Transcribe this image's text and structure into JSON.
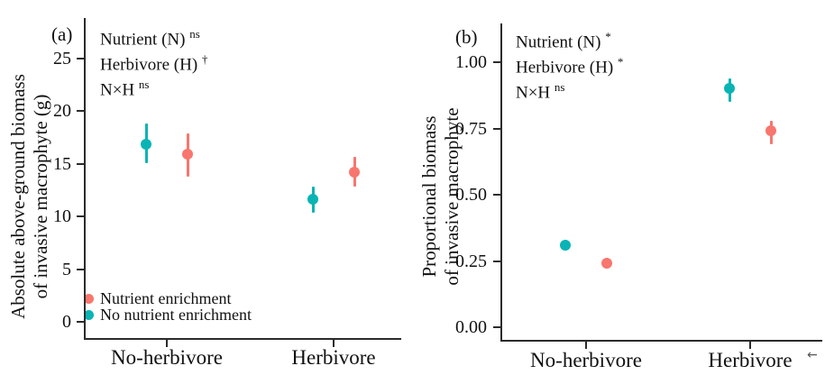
{
  "figure": {
    "legend": {
      "items": [
        {
          "label": "Nutrient enrichment",
          "color": "#f8766d"
        },
        {
          "label": "No nutrient enrichment",
          "color": "#0ab4b4"
        }
      ]
    },
    "colors": {
      "nutrient": "#f8766d",
      "no_nutrient": "#0ab4b4",
      "axis": "#2b2b2b"
    },
    "trailing_mark": "←"
  },
  "chart_data": [
    {
      "type": "scatter",
      "panel_label": "(a)",
      "ylabel_line1": "Absolute above-ground biomass",
      "ylabel_line2": "of invasive macrophyte (g)",
      "ylim": [
        0,
        27
      ],
      "grid": false,
      "legend_position": "bottom-left-inside",
      "yticks": [
        "0",
        "5",
        "10",
        "15",
        "20",
        "25"
      ],
      "ytick_values": [
        0,
        5,
        10,
        15,
        20,
        25
      ],
      "categories": [
        "No-herbivore",
        "Herbivore"
      ],
      "annotations": [
        {
          "text": "Nutrient (N)",
          "sup": "ns"
        },
        {
          "text": "Herbivore (H)",
          "sup": "†"
        },
        {
          "text": "N×H",
          "sup": "ns"
        }
      ],
      "series": [
        {
          "name": "Nutrient enrichment",
          "color": "#f8766d",
          "points": [
            {
              "category": "No-herbivore",
              "mean": 15.9,
              "ci_low": 13.8,
              "ci_high": 17.9
            },
            {
              "category": "Herbivore",
              "mean": 14.2,
              "ci_low": 12.8,
              "ci_high": 15.6
            }
          ]
        },
        {
          "name": "No nutrient enrichment",
          "color": "#0ab4b4",
          "points": [
            {
              "category": "No-herbivore",
              "mean": 16.8,
              "ci_low": 15.0,
              "ci_high": 18.8
            },
            {
              "category": "Herbivore",
              "mean": 11.6,
              "ci_low": 10.3,
              "ci_high": 12.8
            }
          ]
        }
      ]
    },
    {
      "type": "scatter",
      "panel_label": "(b)",
      "ylabel_line1": "Proportional biomass",
      "ylabel_line2": "of invasive macrophyte",
      "ylim": [
        0,
        1.05
      ],
      "grid": false,
      "legend_position": "none",
      "yticks": [
        "0.00",
        "0.25",
        "0.50",
        "0.75",
        "1.00"
      ],
      "ytick_values": [
        0,
        0.25,
        0.5,
        0.75,
        1.0
      ],
      "categories": [
        "No-herbivore",
        "Herbivore"
      ],
      "annotations": [
        {
          "text": "Nutrient (N)",
          "sup": "*"
        },
        {
          "text": "Herbivore (H)",
          "sup": "*"
        },
        {
          "text": "N×H",
          "sup": "ns"
        }
      ],
      "series": [
        {
          "name": "Nutrient enrichment",
          "color": "#f8766d",
          "points": [
            {
              "category": "No-herbivore",
              "mean": 0.24,
              "ci_low": 0.22,
              "ci_high": 0.26
            },
            {
              "category": "Herbivore",
              "mean": 0.74,
              "ci_low": 0.69,
              "ci_high": 0.78
            }
          ]
        },
        {
          "name": "No nutrient enrichment",
          "color": "#0ab4b4",
          "points": [
            {
              "category": "No-herbivore",
              "mean": 0.31,
              "ci_low": 0.29,
              "ci_high": 0.33
            },
            {
              "category": "Herbivore",
              "mean": 0.9,
              "ci_low": 0.85,
              "ci_high": 0.94
            }
          ]
        }
      ]
    }
  ]
}
